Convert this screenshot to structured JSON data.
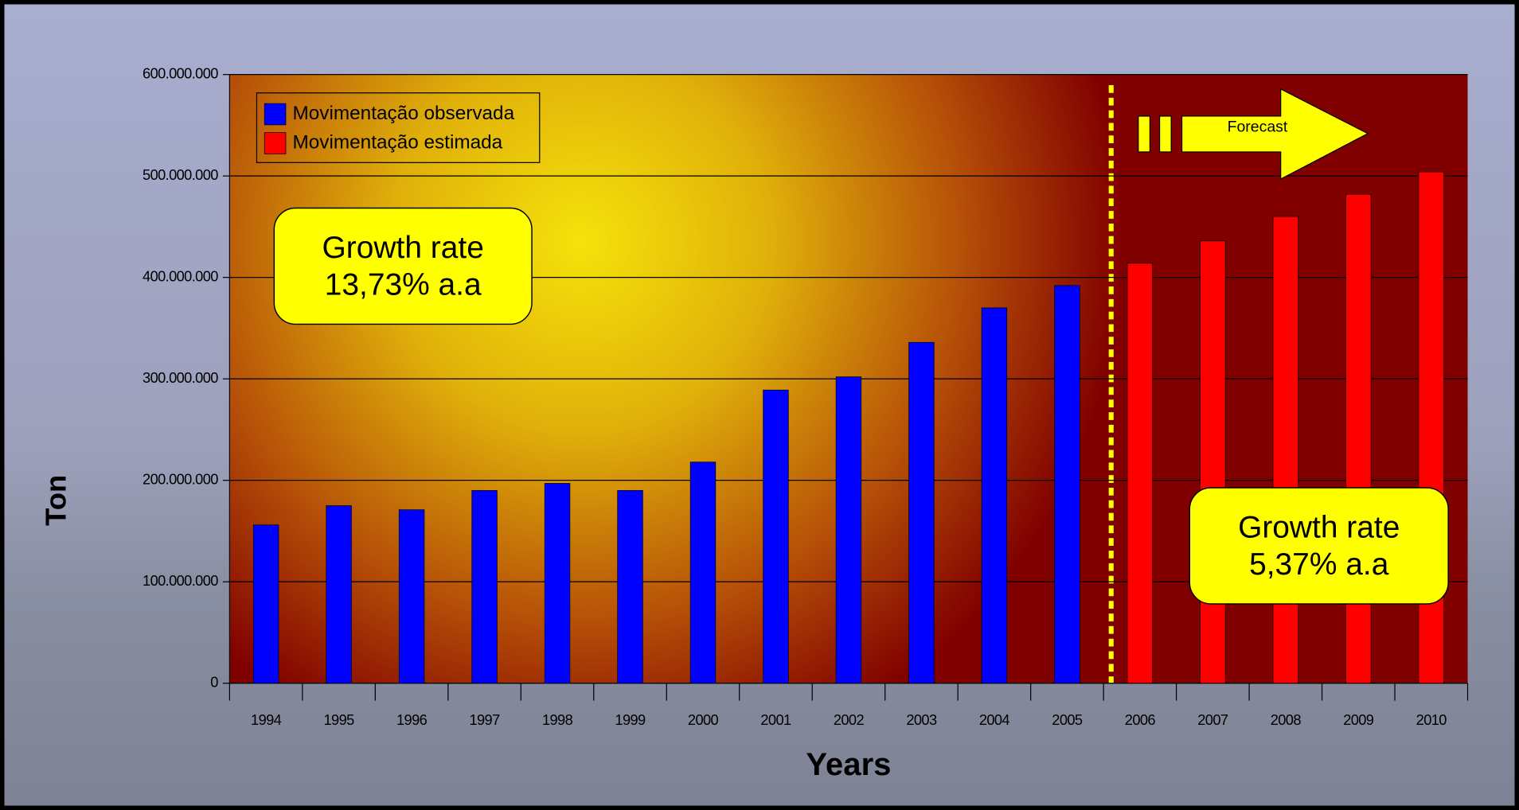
{
  "chart_data": {
    "type": "bar",
    "categories": [
      "1994",
      "1995",
      "1996",
      "1997",
      "1998",
      "1999",
      "2000",
      "2001",
      "2002",
      "2003",
      "2004",
      "2005",
      "2006",
      "2007",
      "2008",
      "2009",
      "2010"
    ],
    "series": [
      {
        "name": "Movimentação observada",
        "color": "#0000ff",
        "values": [
          156000000,
          175000000,
          171000000,
          190000000,
          197000000,
          190000000,
          218000000,
          289000000,
          302000000,
          336000000,
          370000000,
          392000000,
          null,
          null,
          null,
          null,
          null
        ]
      },
      {
        "name": "Movimentação estimada",
        "color": "#ff0000",
        "values": [
          null,
          null,
          null,
          null,
          null,
          null,
          null,
          null,
          null,
          null,
          null,
          null,
          414000000,
          436000000,
          460000000,
          482000000,
          504000000
        ]
      }
    ],
    "ylim": [
      0,
      600000000
    ],
    "yticks": [
      0,
      {
        "value": 100000000,
        "label": "100.000.000"
      },
      {
        "value": 200000000,
        "label": "200.000.000"
      },
      {
        "value": 300000000,
        "label": "300.000.000"
      },
      {
        "value": 400000000,
        "label": "400.000.000"
      },
      {
        "value": 500000000,
        "label": "500.000.000"
      },
      {
        "value": 600000000,
        "label": "600.000.000"
      }
    ],
    "grid": true,
    "xlabel": "Years",
    "ylabel": "Ton",
    "legend": "upper left",
    "annotations": [
      [
        "Growth rate",
        "13,73% a.a"
      ],
      [
        "Growth rate",
        "5,37% a.a"
      ]
    ],
    "forecast_label": "Forecast"
  }
}
